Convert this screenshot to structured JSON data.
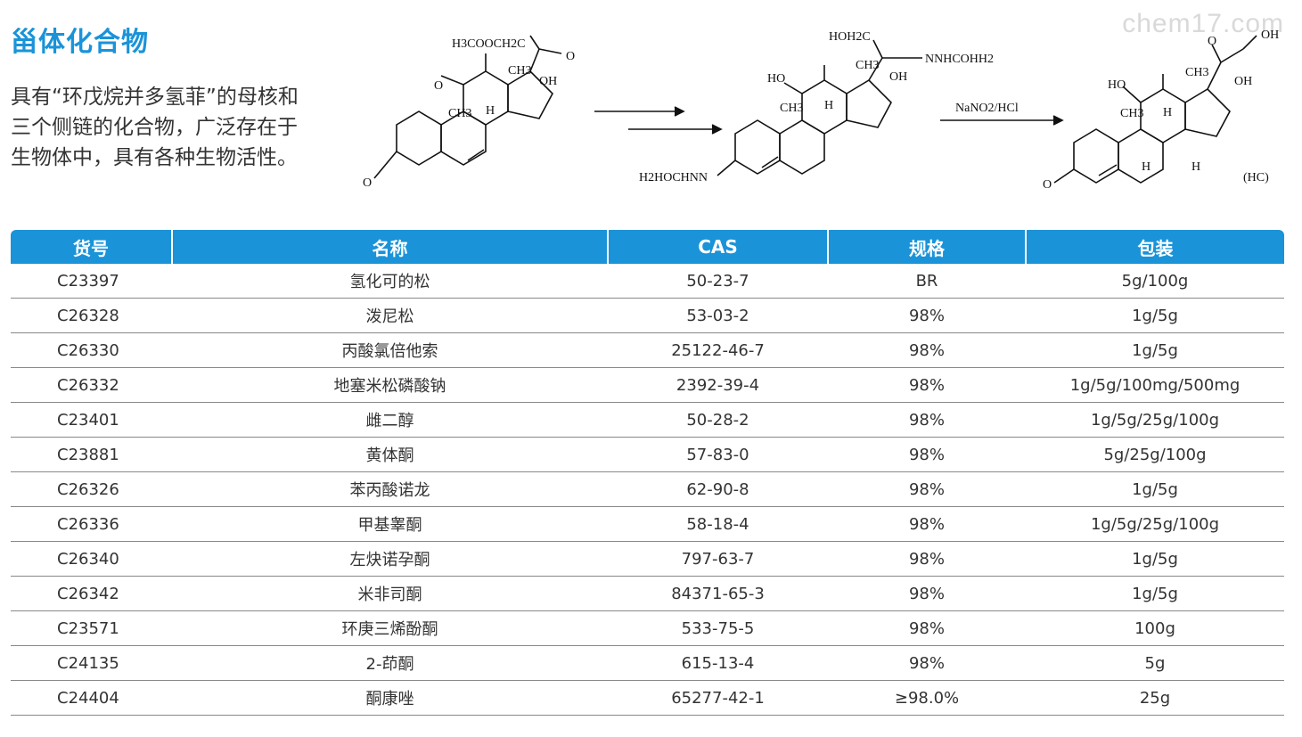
{
  "page": {
    "title": "甾体化合物",
    "description": "具有“环戊烷并多氢菲”的母核和三个侧链的化合物，广泛存在于生物体中，具有各种生物活性。",
    "watermark": "chem17.com"
  },
  "scheme": {
    "reagent": "NaNO2/HCl",
    "product_label": "(HC)",
    "sm_sidechain": "H3COOCH2C",
    "int_sidechain_a": "HOH2C",
    "int_sidechain_b": "NNHCOHH2",
    "int_hydrazone": "H2HOCHNN"
  },
  "table": {
    "headers": [
      "货号",
      "名称",
      "CAS",
      "规格",
      "包装"
    ],
    "rows": [
      [
        "C23397",
        "氢化可的松",
        "50-23-7",
        "BR",
        "5g/100g"
      ],
      [
        "C26328",
        "泼尼松",
        "53-03-2",
        "98%",
        "1g/5g"
      ],
      [
        "C26330",
        "丙酸氯倍他索",
        "25122-46-7",
        "98%",
        "1g/5g"
      ],
      [
        "C26332",
        "地塞米松磷酸钠",
        "2392-39-4",
        "98%",
        "1g/5g/100mg/500mg"
      ],
      [
        "C23401",
        "雌二醇",
        "50-28-2",
        "98%",
        "1g/5g/25g/100g"
      ],
      [
        "C23881",
        "黄体酮",
        "57-83-0",
        "98%",
        "5g/25g/100g"
      ],
      [
        "C26326",
        "苯丙酸诺龙",
        "62-90-8",
        "98%",
        "1g/5g"
      ],
      [
        "C26336",
        "甲基睾酮",
        "58-18-4",
        "98%",
        "1g/5g/25g/100g"
      ],
      [
        "C26340",
        "左炔诺孕酮",
        "797-63-7",
        "98%",
        "1g/5g"
      ],
      [
        "C26342",
        "米非司酮",
        "84371-65-3",
        "98%",
        "1g/5g"
      ],
      [
        "C23571",
        "环庚三烯酚酮",
        "533-75-5",
        "98%",
        "100g"
      ],
      [
        "C24135",
        "2-茚酮",
        "615-13-4",
        "98%",
        "5g"
      ],
      [
        "C24404",
        "酮康唑",
        "65277-42-1",
        "≥98.0%",
        "25g"
      ]
    ]
  }
}
